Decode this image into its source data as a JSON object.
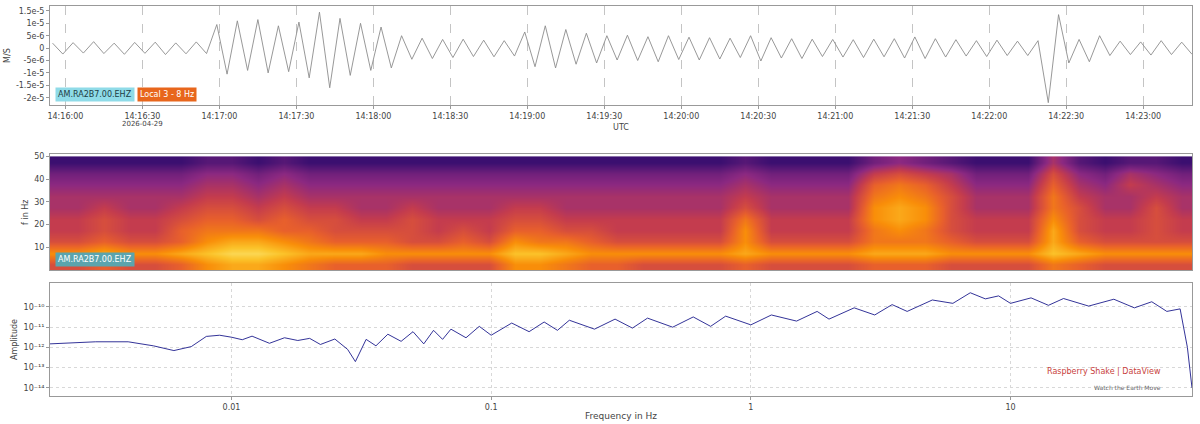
{
  "chart_data": [
    {
      "type": "line",
      "y_label": "M/S",
      "x_label": "UTC",
      "color": "#8c8c8c",
      "x": [
        "2026-04-29 14:15:55",
        "2026-04-29 14:15:59",
        "2026-04-29 14:16:03",
        "2026-04-29 14:16:07",
        "2026-04-29 14:16:11",
        "2026-04-29 14:16:15",
        "2026-04-29 14:16:19",
        "2026-04-29 14:16:23",
        "2026-04-29 14:16:27",
        "2026-04-29 14:16:31",
        "2026-04-29 14:16:35",
        "2026-04-29 14:16:39",
        "2026-04-29 14:16:43",
        "2026-04-29 14:16:47",
        "2026-04-29 14:16:51",
        "2026-04-29 14:16:55",
        "2026-04-29 14:16:59",
        "2026-04-29 14:17:03",
        "2026-04-29 14:17:07",
        "2026-04-29 14:17:11",
        "2026-04-29 14:17:15",
        "2026-04-29 14:17:19",
        "2026-04-29 14:17:23",
        "2026-04-29 14:17:27",
        "2026-04-29 14:17:31",
        "2026-04-29 14:17:35",
        "2026-04-29 14:17:39",
        "2026-04-29 14:17:43",
        "2026-04-29 14:17:47",
        "2026-04-29 14:17:51",
        "2026-04-29 14:17:55",
        "2026-04-29 14:17:59",
        "2026-04-29 14:18:03",
        "2026-04-29 14:18:07",
        "2026-04-29 14:18:11",
        "2026-04-29 14:18:15",
        "2026-04-29 14:18:19",
        "2026-04-29 14:18:23",
        "2026-04-29 14:18:27",
        "2026-04-29 14:18:31",
        "2026-04-29 14:18:35",
        "2026-04-29 14:18:39",
        "2026-04-29 14:18:43",
        "2026-04-29 14:18:47",
        "2026-04-29 14:18:51",
        "2026-04-29 14:18:55",
        "2026-04-29 14:18:59",
        "2026-04-29 14:19:03",
        "2026-04-29 14:19:07",
        "2026-04-29 14:19:11",
        "2026-04-29 14:19:15",
        "2026-04-29 14:19:19",
        "2026-04-29 14:19:23",
        "2026-04-29 14:19:27",
        "2026-04-29 14:19:31",
        "2026-04-29 14:19:35",
        "2026-04-29 14:19:39",
        "2026-04-29 14:19:43",
        "2026-04-29 14:19:47",
        "2026-04-29 14:19:51",
        "2026-04-29 14:19:55",
        "2026-04-29 14:19:59",
        "2026-04-29 14:20:03",
        "2026-04-29 14:20:07",
        "2026-04-29 14:20:11",
        "2026-04-29 14:20:15",
        "2026-04-29 14:20:19",
        "2026-04-29 14:20:23",
        "2026-04-29 14:20:27",
        "2026-04-29 14:20:31",
        "2026-04-29 14:20:35",
        "2026-04-29 14:20:39",
        "2026-04-29 14:20:43",
        "2026-04-29 14:20:47",
        "2026-04-29 14:20:51",
        "2026-04-29 14:20:55",
        "2026-04-29 14:20:59",
        "2026-04-29 14:21:03",
        "2026-04-29 14:21:07",
        "2026-04-29 14:21:11",
        "2026-04-29 14:21:15",
        "2026-04-29 14:21:19",
        "2026-04-29 14:21:23",
        "2026-04-29 14:21:27",
        "2026-04-29 14:21:31",
        "2026-04-29 14:21:35",
        "2026-04-29 14:21:39",
        "2026-04-29 14:21:43",
        "2026-04-29 14:21:47",
        "2026-04-29 14:21:51",
        "2026-04-29 14:21:55",
        "2026-04-29 14:21:59",
        "2026-04-29 14:22:03",
        "2026-04-29 14:22:07",
        "2026-04-29 14:22:11",
        "2026-04-29 14:22:15",
        "2026-04-29 14:22:19",
        "2026-04-29 14:22:23",
        "2026-04-29 14:22:27",
        "2026-04-29 14:22:31",
        "2026-04-29 14:22:35",
        "2026-04-29 14:22:39",
        "2026-04-29 14:22:43",
        "2026-04-29 14:22:47",
        "2026-04-29 14:22:51",
        "2026-04-29 14:22:55",
        "2026-04-29 14:22:59",
        "2026-04-29 14:23:03",
        "2026-04-29 14:23:07",
        "2026-04-29 14:23:11",
        "2026-04-29 14:23:15",
        "2026-04-29 14:23:19"
      ],
      "values": [
        2e-06,
        -2.4e-06,
        2.2e-06,
        -2e-06,
        2.6e-06,
        -2.2e-06,
        2e-06,
        -2.5e-06,
        2.3e-06,
        -2.1e-06,
        2.4e-06,
        -2.6e-06,
        2.1e-06,
        -2.3e-06,
        2.5e-06,
        -2.2e-06,
        9.5e-06,
        -1.05e-05,
        1.1e-05,
        -9e-06,
        1.15e-05,
        -1e-05,
        9e-06,
        -9.5e-06,
        1.05e-05,
        -1.2e-05,
        1.45e-05,
        -1.6e-05,
        1.2e-05,
        -1.1e-05,
        1e-05,
        -9e-06,
        8.5e-06,
        -8e-06,
        5e-06,
        -4.5e-06,
        4e-06,
        -4.2e-06,
        3.5e-06,
        -3.8e-06,
        3.6e-06,
        -3.4e-06,
        3.2e-06,
        -3.5e-06,
        3e-06,
        -3.2e-06,
        6.5e-06,
        -7.5e-06,
        9e-06,
        -8e-06,
        7.5e-06,
        -6.5e-06,
        6e-06,
        -6e-06,
        5e-06,
        -4.8e-06,
        5.2e-06,
        -5e-06,
        4.6e-06,
        -5.5e-06,
        5e-06,
        -4.6e-06,
        4.4e-06,
        -4.8e-06,
        4.2e-06,
        -4.4e-06,
        4e-06,
        -3.8e-06,
        5e-06,
        -5.2e-06,
        4.2e-06,
        -4e-06,
        3.8e-06,
        -4.2e-06,
        3.6e-06,
        -3.4e-06,
        3.5e-06,
        -3.6e-06,
        3.4e-06,
        -3.8e-06,
        3.6e-06,
        -3.5e-06,
        3.8e-06,
        -4e-06,
        4.5e-06,
        -4.2e-06,
        3.8e-06,
        -3.6e-06,
        3.4e-06,
        -3.2e-06,
        3e-06,
        -3.4e-06,
        3.2e-06,
        -3e-06,
        2.8e-06,
        -3e-06,
        3e-06,
        -2.2e-05,
        1.35e-05,
        -6e-06,
        3.5e-06,
        -5.5e-06,
        5e-06,
        -3e-06,
        2.8e-06,
        -2.6e-06,
        2.5e-06,
        -2.8e-06,
        3e-06,
        -2.6e-06,
        2.4e-06,
        -2.5e-06
      ],
      "xlim": [
        "2026-04-29 14:15:54",
        "2026-04-29 14:23:19"
      ],
      "xticks": [
        {
          "value": "2026-04-29 14:16:00",
          "label": "14:16:00"
        },
        {
          "value": "2026-04-29 14:16:30",
          "label": "14:16:30"
        },
        {
          "value": "2026-04-29 14:17:00",
          "label": "14:17:00"
        },
        {
          "value": "2026-04-29 14:17:30",
          "label": "14:17:30"
        },
        {
          "value": "2026-04-29 14:18:00",
          "label": "14:18:00"
        },
        {
          "value": "2026-04-29 14:18:30",
          "label": "14:18:30"
        },
        {
          "value": "2026-04-29 14:19:00",
          "label": "14:19:00"
        },
        {
          "value": "2026-04-29 14:19:30",
          "label": "14:19:30"
        },
        {
          "value": "2026-04-29 14:20:00",
          "label": "14:20:00"
        },
        {
          "value": "2026-04-29 14:20:30",
          "label": "14:20:30"
        },
        {
          "value": "2026-04-29 14:21:00",
          "label": "14:21:00"
        },
        {
          "value": "2026-04-29 14:21:30",
          "label": "14:21:30"
        },
        {
          "value": "2026-04-29 14:22:00",
          "label": "14:22:00"
        },
        {
          "value": "2026-04-29 14:22:30",
          "label": "14:22:30"
        },
        {
          "value": "2026-04-29 14:23:00",
          "label": "14:23:00"
        }
      ],
      "ylim": [
        -2.3e-05,
        1.7e-05
      ],
      "yticks": [
        {
          "value": -2e-05,
          "label": "-2e-5"
        },
        {
          "value": -1.5e-05,
          "label": "-1.5e-5"
        },
        {
          "value": -1e-05,
          "label": "-1e-5"
        },
        {
          "value": -5e-06,
          "label": "-5e-6"
        },
        0,
        {
          "value": 5e-06,
          "label": "5e-6"
        },
        {
          "value": 1e-05,
          "label": "1e-5"
        },
        {
          "value": 1.5e-05,
          "label": "1.5e-5"
        }
      ],
      "grid": "x",
      "annotations": [
        {
          "text": "AM.RA2B7.00.EHZ",
          "color": "#8fdbe8"
        },
        {
          "text": "Local 3 - 8 Hz",
          "color": "#e8661c"
        },
        {
          "text": "2026-04-29",
          "x": "2026-04-29 14:16:30"
        }
      ]
    },
    {
      "type": "heatmap",
      "y_label": "f in Hz",
      "x": [
        "2026-04-29 14:15:55",
        "2026-04-29 14:16:05",
        "2026-04-29 14:16:15",
        "2026-04-29 14:16:25",
        "2026-04-29 14:16:35",
        "2026-04-29 14:16:45",
        "2026-04-29 14:16:55",
        "2026-04-29 14:17:05",
        "2026-04-29 14:17:15",
        "2026-04-29 14:17:25",
        "2026-04-29 14:17:35",
        "2026-04-29 14:17:45",
        "2026-04-29 14:17:55",
        "2026-04-29 14:18:05",
        "2026-04-29 14:18:15",
        "2026-04-29 14:18:25",
        "2026-04-29 14:18:35",
        "2026-04-29 14:18:45",
        "2026-04-29 14:18:55",
        "2026-04-29 14:19:05",
        "2026-04-29 14:19:15",
        "2026-04-29 14:19:25",
        "2026-04-29 14:19:35",
        "2026-04-29 14:19:45",
        "2026-04-29 14:19:55",
        "2026-04-29 14:20:05",
        "2026-04-29 14:20:15",
        "2026-04-29 14:20:25",
        "2026-04-29 14:20:35",
        "2026-04-29 14:20:45",
        "2026-04-29 14:20:55",
        "2026-04-29 14:21:05",
        "2026-04-29 14:21:15",
        "2026-04-29 14:21:25",
        "2026-04-29 14:21:35",
        "2026-04-29 14:21:45",
        "2026-04-29 14:21:55",
        "2026-04-29 14:22:05",
        "2026-04-29 14:22:15",
        "2026-04-29 14:22:25",
        "2026-04-29 14:22:35",
        "2026-04-29 14:22:45",
        "2026-04-29 14:22:55",
        "2026-04-29 14:23:05",
        "2026-04-29 14:23:15"
      ],
      "y": [
        2.5,
        7.5,
        12.5,
        17.5,
        22.5,
        27.5,
        32.5,
        37.5,
        42.5,
        47.5
      ],
      "z": [
        [
          6,
          6,
          6.5,
          6,
          6,
          6.5,
          7.5,
          8,
          8,
          7.5,
          7,
          6.5,
          6.5,
          6.5,
          6,
          6,
          6,
          6,
          7.5,
          7.5,
          7,
          6.5,
          6.5,
          6,
          6,
          6,
          6,
          6.5,
          6,
          6,
          6,
          6,
          6.5,
          6.5,
          6.5,
          6,
          6,
          6,
          6,
          7,
          6.5,
          6,
          6,
          6,
          6
        ],
        [
          7.5,
          7.5,
          8,
          7.5,
          7.5,
          8,
          8.5,
          9,
          9,
          8.5,
          8,
          8,
          8,
          7.5,
          7.5,
          7.5,
          7.5,
          7.5,
          8.5,
          8.5,
          8,
          7.5,
          7.5,
          7.5,
          7.5,
          7.5,
          7.5,
          8,
          7.5,
          7.5,
          7.5,
          7.5,
          8,
          8,
          8,
          7.5,
          7.5,
          7.5,
          7.5,
          8.5,
          8,
          7.5,
          7.5,
          7.5,
          7.5
        ],
        [
          6,
          6,
          6.5,
          6,
          6,
          6.5,
          7.5,
          8,
          8,
          7.5,
          7,
          6.5,
          6.5,
          6.5,
          6,
          6,
          6.5,
          6,
          7.5,
          7,
          7,
          6.5,
          6,
          6,
          6,
          6,
          6,
          7.5,
          6,
          6,
          6,
          6,
          7,
          7,
          7,
          6.5,
          6,
          6,
          6,
          8,
          6.5,
          6,
          6,
          6,
          6
        ],
        [
          5.5,
          5.5,
          6,
          5.5,
          5.5,
          6.5,
          7,
          7,
          7,
          6.5,
          6.5,
          6,
          6,
          6,
          6,
          5.5,
          6,
          5.5,
          6.5,
          6.5,
          6,
          6,
          5.5,
          5.5,
          5.5,
          5.5,
          5.5,
          7.5,
          5.5,
          5.5,
          5.5,
          5.5,
          7,
          7.5,
          7,
          6,
          5.5,
          5.5,
          5.5,
          8,
          6,
          5.5,
          5.5,
          6,
          5.5
        ],
        [
          5.5,
          5.5,
          6,
          5.5,
          5.5,
          6,
          6.5,
          6.5,
          6,
          6.5,
          6,
          6,
          5.5,
          5.5,
          6,
          5.5,
          5.5,
          5.5,
          6,
          6,
          5.5,
          5.5,
          5.5,
          5.5,
          5.5,
          5.5,
          5.5,
          7,
          5.5,
          5.5,
          5.5,
          5.5,
          7.5,
          8,
          7.5,
          6,
          5.5,
          5.5,
          5.5,
          7.5,
          6,
          5.5,
          5.5,
          6,
          5.5
        ],
        [
          5,
          5,
          5.5,
          5,
          5,
          5.5,
          6,
          6,
          5.5,
          6,
          5.5,
          5.5,
          5,
          5,
          5.5,
          5,
          5,
          5,
          5.5,
          5.5,
          5,
          5,
          5,
          5,
          5,
          5,
          5,
          6,
          5,
          5,
          5,
          5,
          7.5,
          8,
          7.5,
          6,
          5,
          5,
          5,
          7,
          6,
          5,
          5,
          6,
          5
        ],
        [
          5,
          5,
          5,
          5,
          5,
          5,
          5.5,
          5.5,
          5,
          5.5,
          5,
          5,
          5,
          5,
          5,
          5,
          5,
          5,
          5,
          5,
          5,
          5,
          5,
          5,
          5,
          5,
          5,
          5.5,
          5,
          5,
          5,
          5,
          7,
          7.5,
          7,
          6,
          5,
          5,
          5,
          7,
          5.5,
          5,
          5,
          5.5,
          5
        ],
        [
          4.5,
          4.5,
          4.5,
          4.5,
          4.5,
          4.5,
          5,
          5,
          4.5,
          5,
          4.5,
          4.5,
          4.5,
          4.5,
          4.5,
          4.5,
          4.5,
          4.5,
          4.5,
          4.5,
          4.5,
          4.5,
          4.5,
          4.5,
          4.5,
          4.5,
          4.5,
          5,
          4.5,
          4.5,
          4.5,
          4.5,
          6.5,
          7,
          6.5,
          5.5,
          4.5,
          4.5,
          4.5,
          6.5,
          5,
          4.5,
          5.5,
          5,
          4.5
        ],
        [
          4,
          4,
          4,
          4,
          4,
          4,
          4.5,
          4.5,
          4,
          4.5,
          4,
          4,
          4,
          4,
          4,
          4,
          4,
          4,
          4,
          4,
          4,
          4,
          4,
          4,
          4,
          4,
          4,
          4.5,
          4,
          4,
          4,
          4,
          5.5,
          6,
          5.5,
          5,
          4,
          4,
          4,
          6,
          4.5,
          4,
          5,
          4.5,
          4
        ],
        [
          3,
          3,
          3,
          3,
          3,
          3,
          3.5,
          3.5,
          3,
          3.5,
          3,
          3,
          3,
          3,
          3,
          3,
          3,
          3,
          3,
          3,
          3,
          3,
          3,
          3,
          3,
          3,
          3,
          3.5,
          3,
          3,
          3,
          3,
          4,
          4.5,
          4,
          3.5,
          3,
          3,
          3,
          5,
          3.5,
          3,
          3.5,
          3.5,
          3
        ]
      ],
      "zlim": [
        0,
        10
      ],
      "xlim": [
        "2026-04-29 14:15:54",
        "2026-04-29 14:23:19"
      ],
      "ylim": [
        0,
        51
      ],
      "yticks": [
        10,
        20,
        30,
        40,
        50
      ],
      "tick_labels": "y",
      "annotations": [
        {
          "text": "AM.RA2B7.00.EHZ",
          "color": "#5ba4ad"
        }
      ]
    },
    {
      "type": "line",
      "x_label": "Frequency in Hz",
      "y_label": "Amplitude",
      "log": true,
      "grid": true,
      "color": "#1c1c8c",
      "x": [
        0.002,
        0.003,
        0.004,
        0.005,
        0.006,
        0.007,
        0.008,
        0.009,
        0.01,
        0.011,
        0.012,
        0.014,
        0.016,
        0.018,
        0.02,
        0.022,
        0.025,
        0.028,
        0.03,
        0.033,
        0.036,
        0.04,
        0.045,
        0.05,
        0.055,
        0.06,
        0.065,
        0.07,
        0.08,
        0.09,
        0.1,
        0.12,
        0.14,
        0.16,
        0.18,
        0.2,
        0.25,
        0.3,
        0.35,
        0.4,
        0.5,
        0.6,
        0.7,
        0.8,
        1,
        1.2,
        1.5,
        1.8,
        2,
        2.5,
        3,
        3.5,
        4,
        5,
        6,
        7,
        8,
        9,
        10,
        12,
        14,
        16,
        20,
        25,
        30,
        35,
        40,
        45,
        48,
        50
      ],
      "values": [
        1.5e-12,
        1.9e-12,
        1.9e-12,
        1.2e-12,
        7e-13,
        1.1e-12,
        3.5e-12,
        4e-12,
        3.2e-12,
        2.4e-12,
        3.6e-12,
        1.6e-12,
        3e-12,
        2.2e-12,
        2.8e-12,
        1.4e-12,
        2.6e-12,
        8e-13,
        2e-13,
        2.5e-12,
        1.2e-12,
        4.5e-12,
        2e-12,
        6e-12,
        1.5e-12,
        7e-12,
        2.5e-12,
        8e-12,
        3e-12,
        1.1e-11,
        4e-12,
        1.6e-11,
        6e-12,
        1.8e-11,
        7e-12,
        2.2e-11,
        8e-12,
        2.5e-11,
        9e-12,
        2.8e-11,
        1e-11,
        3.2e-11,
        1.1e-11,
        3.5e-11,
        1.3e-11,
        4e-11,
        2e-11,
        6e-11,
        2.5e-11,
        9e-11,
        4e-11,
        1.3e-10,
        6e-11,
        2.2e-10,
        1.5e-10,
        5e-10,
        2.5e-10,
        3.5e-10,
        1.5e-10,
        2.8e-10,
        1.2e-10,
        2.6e-10,
        1.1e-10,
        2.4e-10,
        9e-11,
        1.8e-10,
        6e-11,
        8e-11,
        1e-12,
        1e-14
      ],
      "xlim": [
        0.002,
        50
      ],
      "xticks": [
        0.01,
        0.1,
        1,
        10
      ],
      "ylim": [
        4e-15,
        1.5e-09
      ],
      "yticks": [
        {
          "value": 1e-14,
          "label": "10⁻¹⁴"
        },
        {
          "value": 1e-13,
          "label": "10⁻¹³"
        },
        {
          "value": 1e-12,
          "label": "10⁻¹²"
        },
        {
          "value": 1e-11,
          "label": "10⁻¹¹"
        },
        {
          "value": 1e-10,
          "label": "10⁻¹⁰"
        }
      ],
      "annotations": [
        {
          "text": "Raspberry Shake | DataView"
        },
        {
          "text": "Watch the Earth Move"
        }
      ]
    }
  ]
}
